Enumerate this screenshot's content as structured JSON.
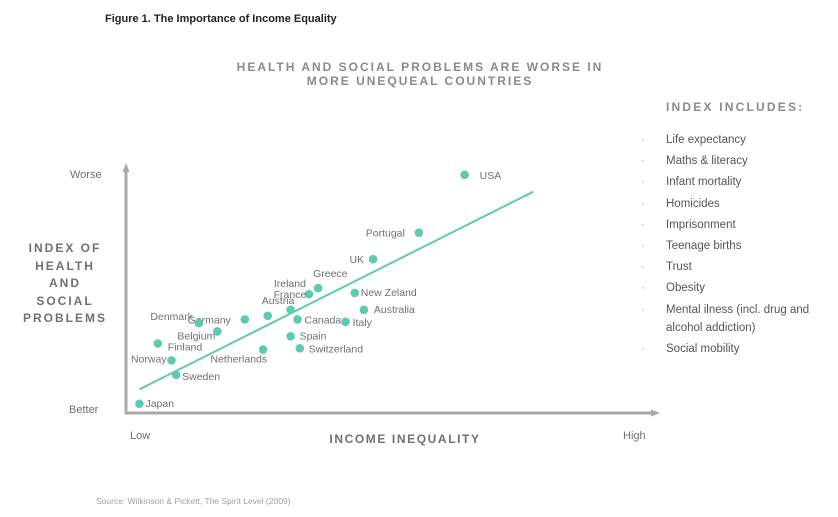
{
  "figure_label": "Figure 1.  The Importance of Income Equality",
  "source": "Source: Wilkinson & Pickett, The Spirit Level (2009)",
  "index_box": {
    "title": "INDEX INCLUDES:",
    "items": [
      "Life expectancy",
      "Maths & literacy",
      "Infant mortality",
      "Homicides",
      "Imprisonment",
      "Teenage births",
      "Trust",
      "Obesity",
      "Mental ilness (incl. drug and alcohol addiction)",
      "Social mobility"
    ]
  },
  "colors": {
    "accent": "#5ecbb0",
    "axis": "#a9a9a9",
    "text": "#707070"
  },
  "chart_data": {
    "type": "scatter",
    "title_lines": [
      "HEALTH AND SOCIAL PROBLEMS ARE WORSE IN",
      "MORE UNEQUEAL COUNTRIES"
    ],
    "xlabel": "INCOME INEQUALITY",
    "ylabel_lines": [
      "INDEX OF",
      "HEALTH",
      "AND",
      "SOCIAL",
      "PROBLEMS"
    ],
    "x_ticks": {
      "low": "Low",
      "high": "High"
    },
    "y_ticks": {
      "low": "Better",
      "high": "Worse"
    },
    "xlim": [
      0,
      100
    ],
    "ylim": [
      0,
      100
    ],
    "grid": false,
    "trendline": {
      "x": [
        6,
        92
      ],
      "y": [
        9,
        91
      ]
    },
    "points": [
      {
        "name": "USA",
        "x": 77,
        "y": 98
      },
      {
        "name": "Portugal",
        "x": 67,
        "y": 74
      },
      {
        "name": "UK",
        "x": 57,
        "y": 63
      },
      {
        "name": "Greece",
        "x": 45,
        "y": 51
      },
      {
        "name": "New Zeland",
        "x": 53,
        "y": 49
      },
      {
        "name": "Ireland",
        "x": 43,
        "y": 48.5
      },
      {
        "name": "Australia",
        "x": 55,
        "y": 42
      },
      {
        "name": "France",
        "x": 39,
        "y": 42
      },
      {
        "name": "Austria",
        "x": 34,
        "y": 39.5
      },
      {
        "name": "Germany",
        "x": 29,
        "y": 38
      },
      {
        "name": "Canada",
        "x": 40.5,
        "y": 38
      },
      {
        "name": "Italy",
        "x": 51,
        "y": 37
      },
      {
        "name": "Denmark",
        "x": 19,
        "y": 36.5
      },
      {
        "name": "Belgium",
        "x": 23,
        "y": 33
      },
      {
        "name": "Spain",
        "x": 39,
        "y": 31
      },
      {
        "name": "Finland",
        "x": 10,
        "y": 28
      },
      {
        "name": "Switzerland",
        "x": 41,
        "y": 26
      },
      {
        "name": "Netherlands",
        "x": 33,
        "y": 25.5
      },
      {
        "name": "Norway",
        "x": 13,
        "y": 21
      },
      {
        "name": "Sweden",
        "x": 14,
        "y": 15
      },
      {
        "name": "Japan",
        "x": 6,
        "y": 3
      }
    ]
  }
}
